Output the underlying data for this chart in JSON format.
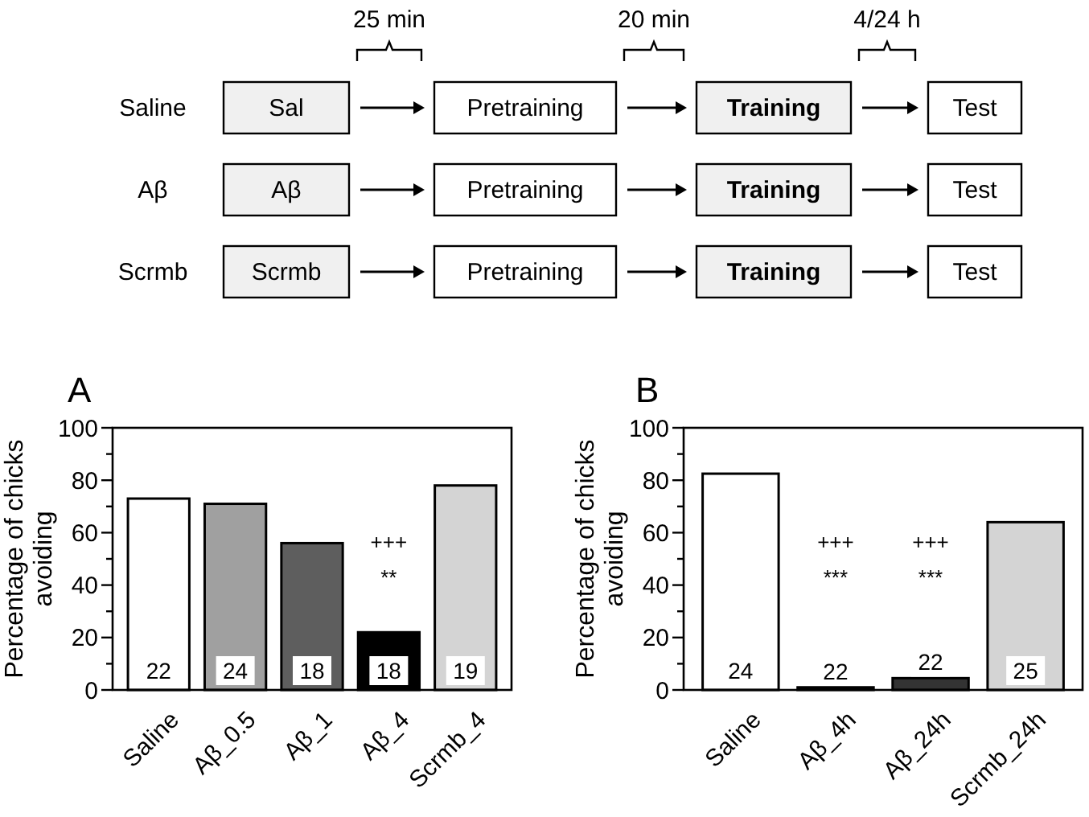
{
  "chart_data": [
    {
      "type": "other",
      "y_categories": [
        "Saline",
        "Aβ",
        "Scrmb"
      ],
      "cell_labels": [
        [
          "Sal",
          "Pretraining",
          "Training",
          "Test"
        ],
        [
          "Aβ",
          "Pretraining",
          "Training",
          "Test"
        ],
        [
          "Scrmb",
          "Pretraining",
          "Training",
          "Test"
        ]
      ],
      "annotations": [
        "25 min",
        "20 min",
        "4/24 h"
      ]
    },
    {
      "type": "bar",
      "title": "A",
      "ylabel": "Percentage of chicks avoiding",
      "categories": [
        "Saline",
        "Aβ_0.5",
        "Aβ_1",
        "Aβ_4",
        "Scrmb_4"
      ],
      "values": [
        73,
        71,
        56,
        22,
        78
      ],
      "colors": [
        "#ffffff",
        "#a0a0a0",
        "#5e5e5e",
        "#000000",
        "#d4d4d4"
      ],
      "ylim": [
        0,
        100
      ],
      "yticks": [
        0,
        {
          "value": 10,
          "label": null
        },
        20,
        {
          "value": 30,
          "label": null
        },
        40,
        {
          "value": 50,
          "label": null
        },
        60,
        {
          "value": 70,
          "label": null
        },
        80,
        {
          "value": 90,
          "label": null
        },
        100
      ],
      "annotations": [
        "22",
        "24",
        "18",
        "18",
        "19",
        "+++",
        "**"
      ]
    },
    {
      "type": "bar",
      "title": "B",
      "ylabel": "Percentage of chicks avoiding",
      "categories": [
        "Saline",
        "Aβ_4h",
        "Aβ_24h",
        "Scrmb_24h"
      ],
      "values": [
        82.5,
        1,
        4.5,
        64
      ],
      "colors": [
        "#ffffff",
        "#000000",
        "#333333",
        "#d4d4d4"
      ],
      "ylim": [
        0,
        100
      ],
      "yticks": [
        0,
        {
          "value": 10,
          "label": null
        },
        20,
        {
          "value": 30,
          "label": null
        },
        40,
        {
          "value": 50,
          "label": null
        },
        60,
        {
          "value": 70,
          "label": null
        },
        80,
        {
          "value": 90,
          "label": null
        },
        100
      ],
      "annotations": [
        "24",
        "22",
        "22",
        "25",
        "+++",
        "***",
        "+++",
        "***"
      ]
    }
  ]
}
